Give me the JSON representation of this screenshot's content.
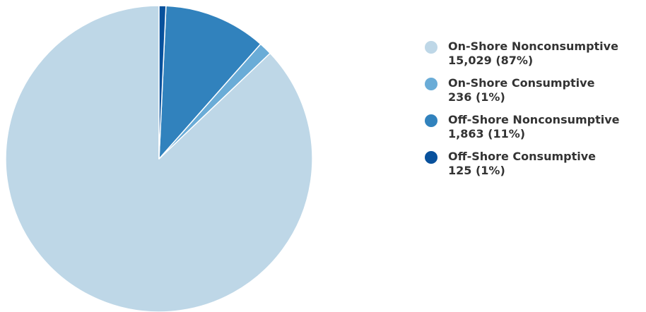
{
  "chart_data": {
    "type": "pie",
    "title": "",
    "legend_position": "right",
    "slices": [
      {
        "label": "On-Shore Nonconsumptive",
        "value": 15029,
        "display_value": "15,029 (87%)",
        "color": "#bed7e7"
      },
      {
        "label": "On-Shore Consumptive",
        "value": 236,
        "display_value": "236 (1%)",
        "color": "#6aacd7"
      },
      {
        "label": "Off-Shore Nonconsumptive",
        "value": 1863,
        "display_value": "1,863 (11%)",
        "color": "#3182bd"
      },
      {
        "label": "Off-Shore Consumptive",
        "value": 125,
        "display_value": "125 (1%)",
        "color": "#08519c"
      }
    ]
  }
}
